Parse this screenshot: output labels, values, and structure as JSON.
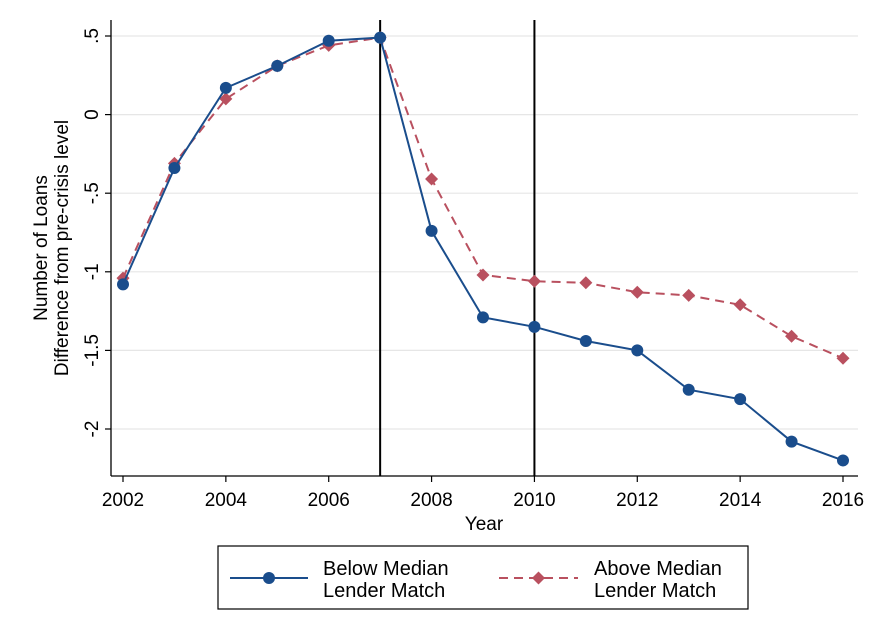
{
  "chart_data": {
    "type": "line",
    "xlabel": "Year",
    "ylabel_lines": [
      "Number of Loans",
      "Difference from pre-crisis level"
    ],
    "xlim": [
      2002,
      2016
    ],
    "ylim": [
      -2.3,
      0.55
    ],
    "x_ticks": [
      2002,
      2004,
      2006,
      2008,
      2010,
      2012,
      2014,
      2016
    ],
    "x_tick_labels": [
      "2002",
      "2004",
      "2006",
      "2008",
      "2010",
      "2012",
      "2014",
      "2016"
    ],
    "y_ticks": [
      0.5,
      0,
      -0.5,
      -1,
      -1.5,
      -2
    ],
    "y_tick_labels": [
      ".5",
      "0",
      "-.5",
      "-1",
      "-1.5",
      "-2"
    ],
    "grid": true,
    "vertical_lines": [
      2007,
      2010
    ],
    "legend_position": "bottom",
    "x": [
      2002,
      2003,
      2004,
      2005,
      2006,
      2007,
      2008,
      2009,
      2010,
      2011,
      2012,
      2013,
      2014,
      2015,
      2016
    ],
    "series": [
      {
        "name_lines": [
          "Below Median",
          "Lender Match"
        ],
        "color": "#1a4d8c",
        "line_style": "solid",
        "marker": "circle",
        "values": [
          -1.08,
          -0.34,
          0.17,
          0.31,
          0.47,
          0.49,
          -0.74,
          -1.29,
          -1.35,
          -1.44,
          -1.5,
          -1.75,
          -1.81,
          -2.08,
          -2.2
        ]
      },
      {
        "name_lines": [
          "Above Median",
          "Lender Match"
        ],
        "color": "#b9505f",
        "line_style": "dashed",
        "marker": "diamond",
        "values": [
          -1.04,
          -0.31,
          0.1,
          0.31,
          0.44,
          0.49,
          -0.41,
          -1.02,
          -1.06,
          -1.07,
          -1.13,
          -1.15,
          -1.21,
          -1.41,
          -1.55
        ]
      }
    ]
  }
}
